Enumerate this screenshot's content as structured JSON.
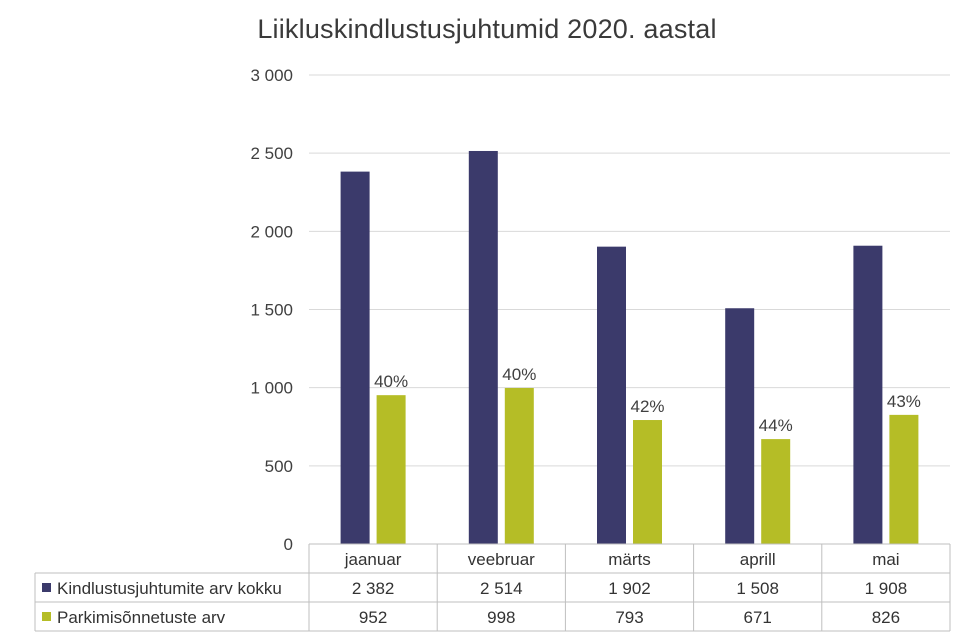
{
  "chart_data": {
    "type": "bar",
    "title": "Liikluskindlustusjuhtumid 2020. aastal",
    "categories": [
      "jaanuar",
      "veebruar",
      "märts",
      "aprill",
      "mai"
    ],
    "series": [
      {
        "name": "Kindlustusjuhtumite arv kokku",
        "values": [
          2382,
          2514,
          1902,
          1508,
          1908
        ],
        "display_values": [
          "2 382",
          "2 514",
          "1 902",
          "1 508",
          "1 908"
        ],
        "color": "#3b3a6b"
      },
      {
        "name": "Parkimisõnnetuste arv",
        "values": [
          952,
          998,
          793,
          671,
          826
        ],
        "display_values": [
          "952",
          "998",
          "793",
          "671",
          "826"
        ],
        "data_labels": [
          "40%",
          "40%",
          "42%",
          "44%",
          "43%"
        ],
        "color": "#b5bd26"
      }
    ],
    "ylim": [
      0,
      3000
    ],
    "yticks": [
      0,
      500,
      1000,
      1500,
      2000,
      2500,
      3000
    ],
    "ytick_labels": [
      "0",
      "500",
      "1 000",
      "1 500",
      "2 000",
      "2 500",
      "3 000"
    ],
    "grid": true,
    "legend": "data-table-below"
  }
}
